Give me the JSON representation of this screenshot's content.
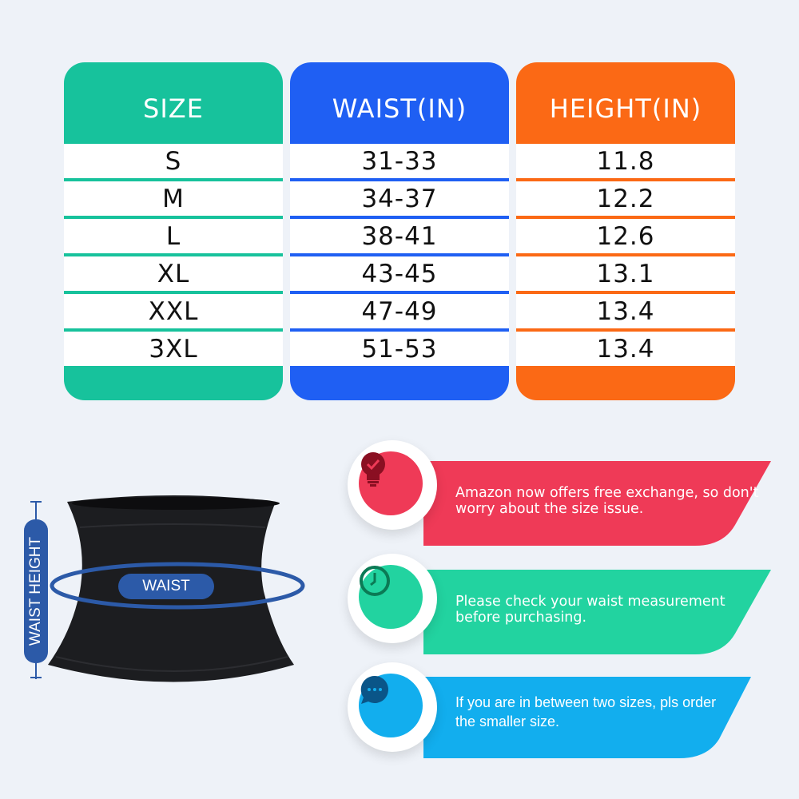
{
  "colors": {
    "size": "#17c29c",
    "waist": "#1f5ff3",
    "height": "#fb6915",
    "red": "#ef3a57",
    "green": "#22d3a0",
    "blue": "#12aeee",
    "label": "#2c5aa8"
  },
  "table": {
    "headers": [
      "SIZE",
      "WAIST(IN)",
      "HEIGHT(IN)"
    ],
    "rows": [
      [
        "S",
        "31-33",
        "11.8"
      ],
      [
        "M",
        "34-37",
        "12.2"
      ],
      [
        "L",
        "38-41",
        "12.6"
      ],
      [
        "XL",
        "43-45",
        "13.1"
      ],
      [
        "XXL",
        "47-49",
        "13.4"
      ],
      [
        "3XL",
        "51-53",
        "13.4"
      ]
    ]
  },
  "diagram": {
    "waist_label": "WAIST",
    "height_label": "WAIST HEIGHT"
  },
  "tips": [
    {
      "icon": "lightbulb-check-icon",
      "text": "Amazon now offers free exchange, so don't worry about the size issue."
    },
    {
      "icon": "clock-icon",
      "text": "Please check your waist measurement before purchasing."
    },
    {
      "icon": "chat-bubble-icon",
      "text": "If you are in between two sizes, pls order the smaller size."
    }
  ]
}
